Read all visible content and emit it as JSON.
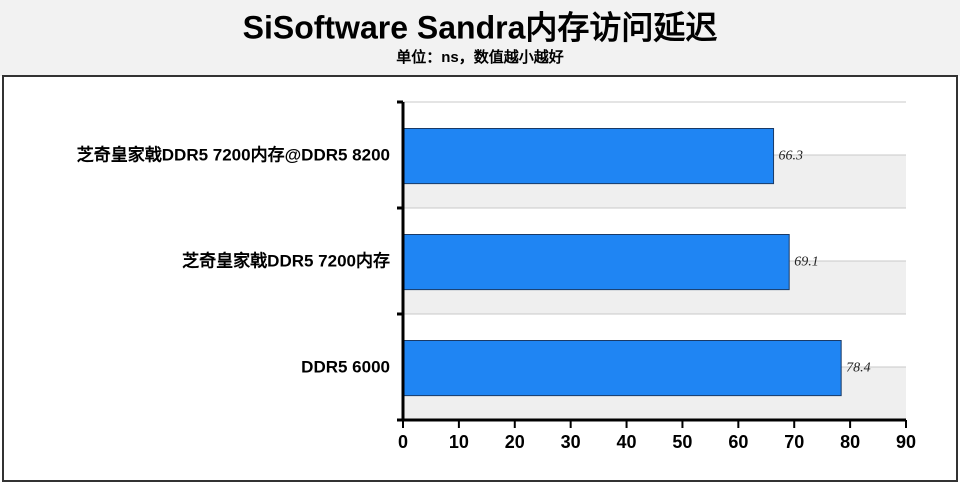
{
  "chart_data": {
    "type": "hbar",
    "title": "SiSoftware Sandra内存访问延迟",
    "subtitle": "单位：ns，数值越小越好",
    "categories": [
      "芝奇皇家戟DDR5 7200内存@DDR5 8200",
      "芝奇皇家戟DDR5 7200内存",
      "DDR5 6000"
    ],
    "values": [
      66.3,
      69.1,
      78.4
    ],
    "color": "#1f85f3",
    "xlim": [
      0,
      90
    ],
    "xticks": [
      0,
      10,
      20,
      30,
      40,
      50,
      60,
      70,
      80,
      90
    ]
  }
}
